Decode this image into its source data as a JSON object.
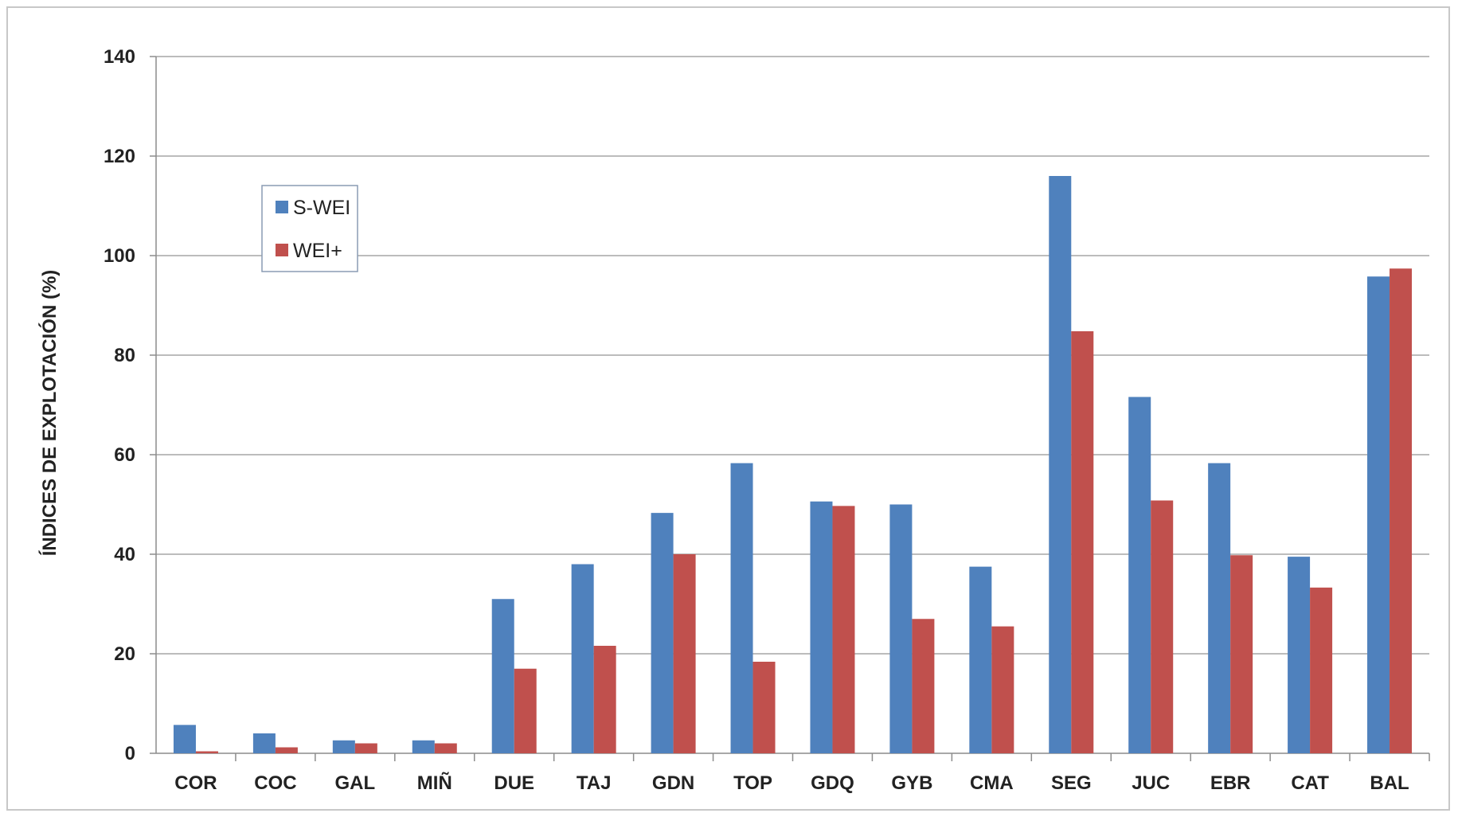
{
  "chart_data": {
    "type": "bar",
    "title": "",
    "xlabel": "",
    "ylabel": "ÍNDICES DE EXPLOTACIÓN (%)",
    "ylim": [
      0,
      140
    ],
    "yticks": [
      0,
      20,
      40,
      60,
      80,
      100,
      120,
      140
    ],
    "grid": true,
    "legend_position": "top-left",
    "categories": [
      "COR",
      "COC",
      "GAL",
      "MIÑ",
      "DUE",
      "TAJ",
      "GDN",
      "TOP",
      "GDQ",
      "GYB",
      "CMA",
      "SEG",
      "JUC",
      "EBR",
      "CAT",
      "BAL"
    ],
    "series": [
      {
        "name": "S-WEI",
        "color": "#4f81bd",
        "values": [
          5.7,
          4.0,
          2.6,
          2.6,
          31.0,
          38.0,
          48.3,
          58.3,
          50.6,
          50.0,
          37.5,
          116.0,
          71.6,
          58.3,
          39.5,
          95.8
        ]
      },
      {
        "name": "WEI+",
        "color": "#c0504d",
        "values": [
          0.4,
          1.2,
          2.0,
          2.0,
          17.0,
          21.6,
          40.0,
          18.4,
          49.7,
          27.0,
          25.5,
          84.8,
          50.8,
          39.8,
          33.3,
          97.4
        ]
      }
    ]
  }
}
